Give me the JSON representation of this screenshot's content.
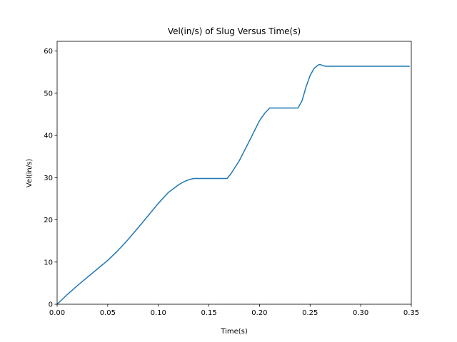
{
  "chart_data": {
    "type": "line",
    "title": "Vel(in/s) of Slug Versus Time(s)",
    "xlabel": "Time(s)",
    "ylabel": "Vel(in/s)",
    "xlim": [
      0,
      0.35
    ],
    "ylim": [
      0,
      62.3
    ],
    "xticks": [
      0.0,
      0.05,
      0.1,
      0.15,
      0.2,
      0.25,
      0.3,
      0.35
    ],
    "xtick_labels": [
      "0.00",
      "0.05",
      "0.10",
      "0.15",
      "0.20",
      "0.25",
      "0.30",
      "0.35"
    ],
    "yticks": [
      0,
      10,
      20,
      30,
      40,
      50,
      60
    ],
    "ytick_labels": [
      "0",
      "10",
      "20",
      "30",
      "40",
      "50",
      "60"
    ],
    "grid": false,
    "line_color": "#1f77b4",
    "series": [
      {
        "x": [
          0.0,
          0.01,
          0.02,
          0.03,
          0.04,
          0.05,
          0.06,
          0.07,
          0.08,
          0.09,
          0.1,
          0.11,
          0.12,
          0.125,
          0.13,
          0.135,
          0.14,
          0.15,
          0.16,
          0.168,
          0.172,
          0.18,
          0.19,
          0.2,
          0.205,
          0.21,
          0.215,
          0.225,
          0.235,
          0.238,
          0.242,
          0.246,
          0.25,
          0.254,
          0.258,
          0.26,
          0.263,
          0.266,
          0.27,
          0.29,
          0.32,
          0.348
        ],
        "y": [
          0.0,
          2.3,
          4.4,
          6.4,
          8.4,
          10.4,
          12.7,
          15.3,
          18.1,
          21.0,
          23.9,
          26.5,
          28.3,
          29.0,
          29.5,
          29.8,
          29.8,
          29.8,
          29.8,
          29.8,
          31.0,
          34.0,
          38.7,
          43.5,
          45.2,
          46.5,
          46.5,
          46.5,
          46.5,
          46.5,
          48.2,
          51.5,
          54.2,
          55.9,
          56.7,
          56.8,
          56.5,
          56.4,
          56.4,
          56.4,
          56.4,
          56.4
        ]
      }
    ]
  }
}
